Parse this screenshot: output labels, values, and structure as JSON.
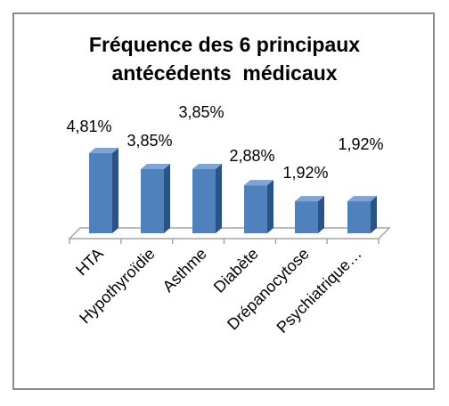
{
  "chart_data": {
    "type": "bar3d",
    "title": "Fréquence des 6 principaux antécédents  médicaux",
    "categories": [
      "HTA",
      "Hypothyroïdie",
      "Asthme",
      "Diabète",
      "Drépanocytose",
      "Psychiatrique…"
    ],
    "values": [
      4.81,
      3.85,
      3.85,
      2.88,
      1.92,
      1.92
    ],
    "value_labels": [
      "4,81%",
      "3,85%",
      "3,85%",
      "2,88%",
      "1,92%",
      "1,92%"
    ],
    "color": "#4f81bd"
  }
}
